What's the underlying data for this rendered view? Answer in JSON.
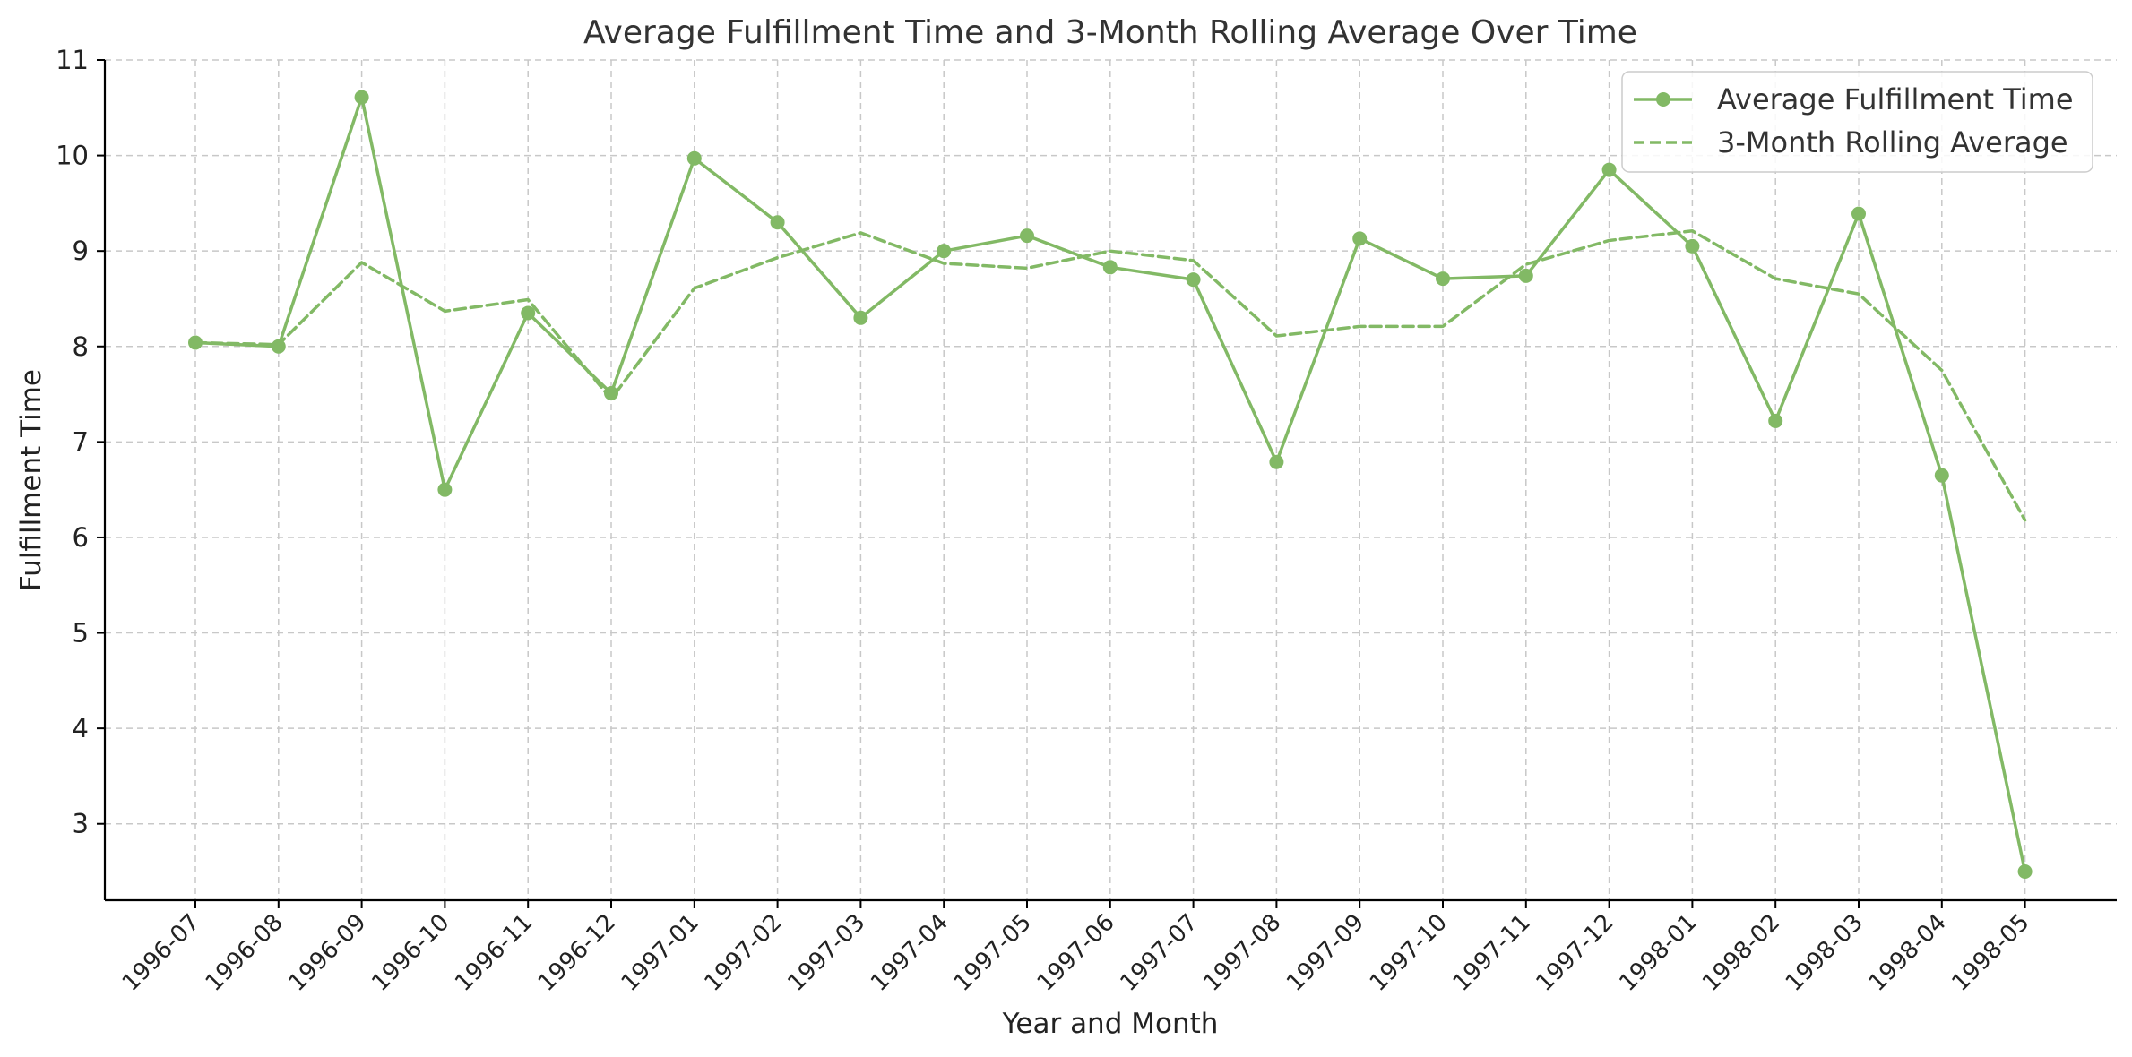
{
  "chart_data": {
    "type": "line",
    "title": "Average Fulfillment Time and 3-Month Rolling Average Over Time",
    "xlabel": "Year and Month",
    "ylabel": "Fulfillment Time",
    "ylim": [
      2.2,
      11
    ],
    "yticks": [
      3,
      4,
      5,
      6,
      7,
      8,
      9,
      10,
      11
    ],
    "grid": true,
    "legend_position": "top-right",
    "categories": [
      "1996-07",
      "1996-08",
      "1996-09",
      "1996-10",
      "1996-11",
      "1996-12",
      "1997-01",
      "1997-02",
      "1997-03",
      "1997-04",
      "1997-05",
      "1997-06",
      "1997-07",
      "1997-08",
      "1997-09",
      "1997-10",
      "1997-11",
      "1997-12",
      "1998-01",
      "1998-02",
      "1998-03",
      "1998-04",
      "1998-05"
    ],
    "series": [
      {
        "name": "Average Fulfillment Time",
        "color": "#82b965",
        "style": "solid",
        "marker": "circle",
        "values": [
          8.04,
          8.0,
          10.61,
          6.5,
          8.35,
          7.51,
          9.97,
          9.3,
          8.3,
          9.0,
          9.16,
          8.83,
          8.7,
          6.79,
          9.13,
          8.71,
          8.74,
          9.85,
          9.05,
          7.22,
          9.39,
          6.65,
          2.5
        ]
      },
      {
        "name": "3-Month Rolling Average",
        "color": "#82b965",
        "style": "dashed",
        "marker": "none",
        "values": [
          8.04,
          8.02,
          8.88,
          8.37,
          8.49,
          7.45,
          8.61,
          8.93,
          9.19,
          8.87,
          8.82,
          9.0,
          8.9,
          8.11,
          8.21,
          8.21,
          8.86,
          9.11,
          9.21,
          8.71,
          8.55,
          7.75,
          6.18
        ]
      }
    ]
  }
}
